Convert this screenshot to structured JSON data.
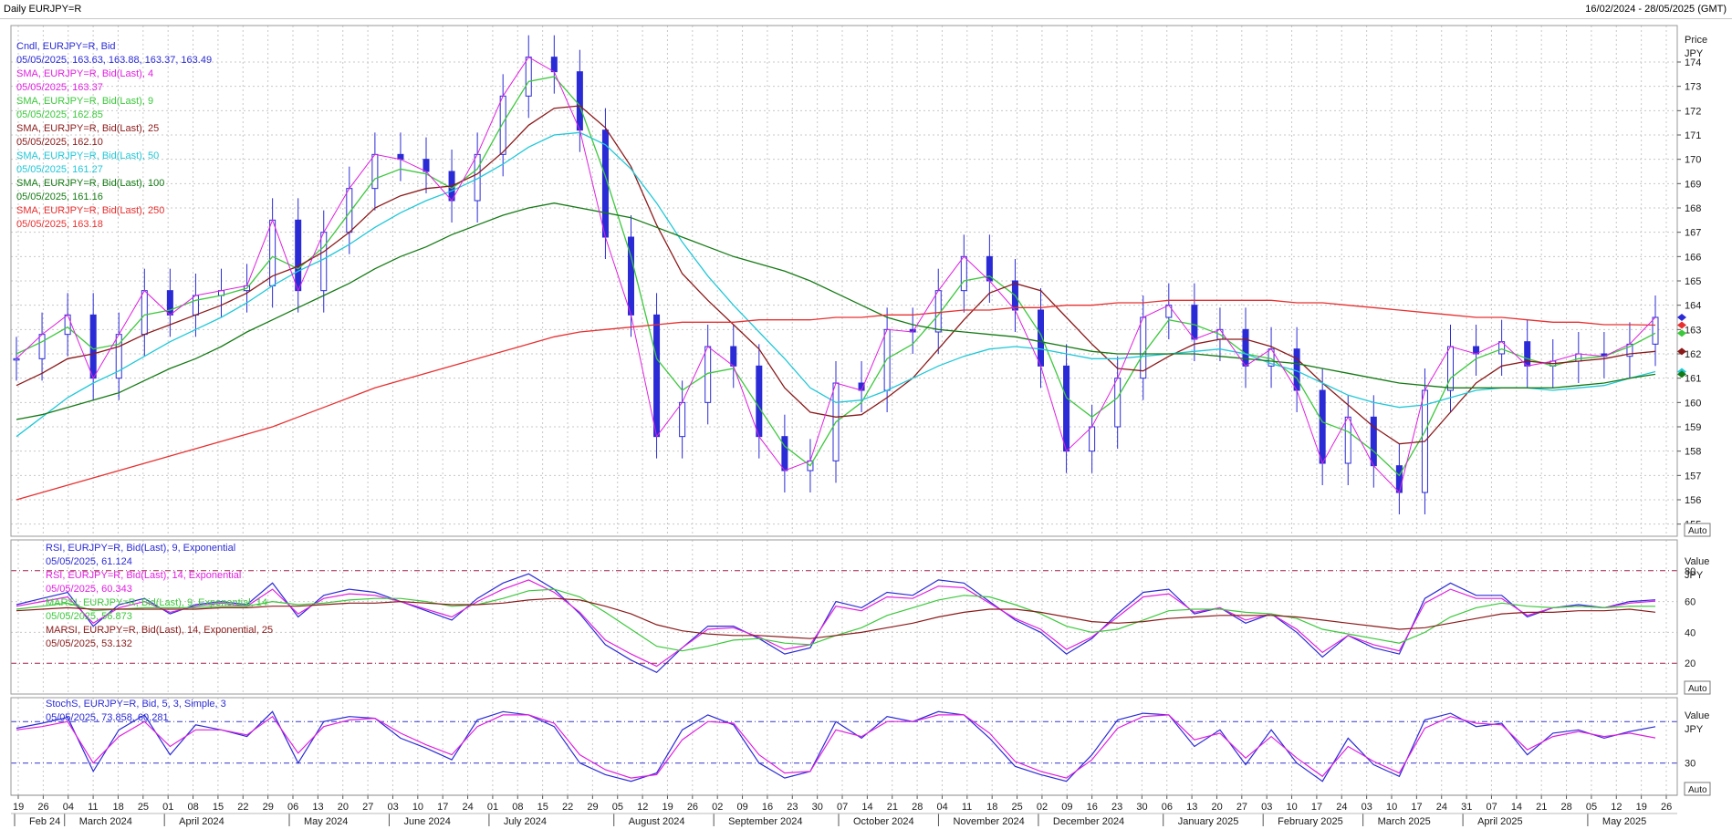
{
  "header": {
    "title": "Daily EURJPY=R",
    "date_range": "16/02/2024 - 28/05/2025 (GMT)"
  },
  "axes": {
    "price": {
      "label": "Price",
      "unit": "JPY",
      "ticks": [
        155,
        156,
        157,
        158,
        159,
        160,
        161,
        162,
        163,
        164,
        165,
        166,
        167,
        168,
        169,
        170,
        171,
        172,
        173,
        174
      ]
    },
    "rsi": {
      "label": "Value",
      "unit": "JPY",
      "ticks": [
        20,
        40,
        60,
        80
      ]
    },
    "stoch": {
      "label": "Value",
      "unit": "JPY",
      "ticks": [
        30
      ]
    },
    "auto_label": "Auto",
    "day_labels": [
      "19",
      "26",
      "04",
      "11",
      "18",
      "25",
      "01",
      "08",
      "15",
      "22",
      "29",
      "06",
      "13",
      "20",
      "27",
      "03",
      "10",
      "17",
      "24",
      "01",
      "08",
      "15",
      "22",
      "29",
      "05",
      "12",
      "19",
      "26",
      "02",
      "09",
      "16",
      "23",
      "30",
      "07",
      "14",
      "21",
      "28",
      "04",
      "11",
      "18",
      "25",
      "02",
      "09",
      "16",
      "23",
      "30",
      "06",
      "13",
      "20",
      "27",
      "03",
      "10",
      "17",
      "24",
      "03",
      "10",
      "17",
      "24",
      "31",
      "07",
      "14",
      "21",
      "28",
      "05",
      "12",
      "19",
      "26"
    ],
    "month_labels": [
      "Feb 24",
      "March 2024",
      "April 2024",
      "May 2024",
      "June 2024",
      "July 2024",
      "August 2024",
      "September 2024",
      "October 2024",
      "November 2024",
      "December 2024",
      "January 2025",
      "February 2025",
      "March 2025",
      "April 2025",
      "May 2025"
    ]
  },
  "legend": {
    "price": [
      {
        "label": "Cndl, EURJPY=R, Bid",
        "value": "05/05/2025, 163.63, 163.88, 163.37, 163.49",
        "color": "#2b2bd6"
      },
      {
        "label": "SMA, EURJPY=R, Bid(Last),  4",
        "value": "05/05/2025, 163.37",
        "color": "#e020e0"
      },
      {
        "label": "SMA, EURJPY=R, Bid(Last),  9",
        "value": "05/05/2025, 162.85",
        "color": "#3cc83c"
      },
      {
        "label": "SMA, EURJPY=R, Bid(Last),  25",
        "value": "05/05/2025, 162.10",
        "color": "#8b1a1a"
      },
      {
        "label": "SMA, EURJPY=R, Bid(Last),  50",
        "value": "05/05/2025, 161.27",
        "color": "#20c8d8"
      },
      {
        "label": "SMA, EURJPY=R, Bid(Last),  100",
        "value": "05/05/2025, 161.16",
        "color": "#157a15"
      },
      {
        "label": "SMA, EURJPY=R, Bid(Last),  250",
        "value": "05/05/2025, 163.18",
        "color": "#e83030"
      }
    ],
    "rsi": [
      {
        "label": "RSI, EURJPY=R, Bid(Last),  9, Exponential",
        "value": "05/05/2025, 61.124",
        "color": "#2b2bd6"
      },
      {
        "label": "RSI, EURJPY=R, Bid(Last),  14, Exponential",
        "value": "05/05/2025, 60.343",
        "color": "#e020e0"
      },
      {
        "label": "MARSI, EURJPY=R, Bid(Last),  9, Exponential, 14",
        "value": "05/05/2025, 56.873",
        "color": "#3cc83c"
      },
      {
        "label": "MARSI, EURJPY=R, Bid(Last),  14, Exponential, 25",
        "value": "05/05/2025, 53.132",
        "color": "#8b1a1a"
      }
    ],
    "stoch": [
      {
        "label": "StochS, EURJPY=R, Bid,  5, 3, Simple, 3",
        "value": "05/05/2025, 73.858, 60.281",
        "color": "#2b2bd6"
      }
    ]
  },
  "chart_data": {
    "type": "line",
    "symbol": "EURJPY=R",
    "x": [
      "2024-02-16",
      "2024-02-23",
      "2024-03-01",
      "2024-03-08",
      "2024-03-15",
      "2024-03-22",
      "2024-03-29",
      "2024-04-05",
      "2024-04-12",
      "2024-04-19",
      "2024-04-26",
      "2024-05-03",
      "2024-05-10",
      "2024-05-17",
      "2024-05-24",
      "2024-05-31",
      "2024-06-07",
      "2024-06-14",
      "2024-06-21",
      "2024-06-28",
      "2024-07-05",
      "2024-07-12",
      "2024-07-19",
      "2024-07-26",
      "2024-08-02",
      "2024-08-09",
      "2024-08-16",
      "2024-08-23",
      "2024-08-30",
      "2024-09-06",
      "2024-09-13",
      "2024-09-20",
      "2024-09-27",
      "2024-10-04",
      "2024-10-11",
      "2024-10-18",
      "2024-10-25",
      "2024-11-01",
      "2024-11-08",
      "2024-11-15",
      "2024-11-22",
      "2024-11-29",
      "2024-12-06",
      "2024-12-13",
      "2024-12-20",
      "2024-12-27",
      "2025-01-03",
      "2025-01-10",
      "2025-01-17",
      "2025-01-24",
      "2025-01-31",
      "2025-02-07",
      "2025-02-14",
      "2025-02-21",
      "2025-02-28",
      "2025-03-07",
      "2025-03-14",
      "2025-03-21",
      "2025-03-28",
      "2025-04-04",
      "2025-04-11",
      "2025-04-18",
      "2025-04-25",
      "2025-05-02",
      "2025-05-05"
    ],
    "price_ylim": [
      154.5,
      175.5
    ],
    "series": [
      {
        "name": "Cndl, EURJPY=R, Bid",
        "values": [
          161.8,
          162.8,
          163.6,
          161.0,
          162.8,
          164.6,
          163.6,
          164.4,
          164.6,
          164.8,
          167.5,
          164.6,
          167.0,
          168.8,
          170.2,
          170.0,
          169.5,
          168.3,
          170.2,
          172.6,
          174.2,
          173.6,
          171.2,
          166.8,
          163.6,
          158.6,
          160.0,
          162.3,
          161.5,
          158.6,
          157.2,
          157.6,
          160.8,
          160.5,
          163.0,
          162.9,
          164.6,
          166.0,
          165.0,
          163.8,
          161.5,
          158.0,
          159.0,
          161.0,
          163.5,
          164.0,
          162.6,
          163.0,
          161.5,
          162.2,
          160.5,
          157.5,
          159.4,
          157.4,
          156.3,
          160.5,
          162.3,
          162.0,
          162.5,
          161.5,
          161.7,
          162.0,
          161.9,
          162.4,
          163.5
        ]
      },
      {
        "name": "SMA, EURJPY=R, Bid(Last),  9",
        "values": [
          162.0,
          162.5,
          163.1,
          162.2,
          162.4,
          163.6,
          163.8,
          164.2,
          164.4,
          164.7,
          166.0,
          165.5,
          166.4,
          167.8,
          169.2,
          169.6,
          169.4,
          168.8,
          169.6,
          171.5,
          173.2,
          173.4,
          172.2,
          169.3,
          166.0,
          161.8,
          160.5,
          161.2,
          161.4,
          159.8,
          158.2,
          157.4,
          159.2,
          160.0,
          161.8,
          162.4,
          163.6,
          165.0,
          165.2,
          164.4,
          162.8,
          160.2,
          159.4,
          160.2,
          162.0,
          163.4,
          163.2,
          162.8,
          162.0,
          161.8,
          161.0,
          159.2,
          158.8,
          158.0,
          157.0,
          158.8,
          161.0,
          161.8,
          162.2,
          161.8,
          161.5,
          161.8,
          161.9,
          162.3,
          162.85
        ]
      },
      {
        "name": "SMA, EURJPY=R, Bid(Last),  25",
        "values": [
          160.7,
          161.2,
          161.8,
          162.0,
          162.3,
          162.8,
          163.2,
          163.6,
          164.0,
          164.5,
          165.2,
          165.6,
          166.2,
          167.0,
          168.0,
          168.5,
          168.8,
          168.9,
          169.4,
          170.3,
          171.4,
          172.1,
          172.2,
          171.3,
          169.7,
          167.3,
          165.3,
          164.2,
          163.2,
          162.2,
          160.6,
          159.6,
          159.4,
          159.5,
          160.2,
          161.0,
          162.2,
          163.4,
          164.5,
          164.9,
          164.6,
          163.5,
          162.4,
          161.4,
          161.3,
          161.9,
          162.4,
          162.6,
          162.6,
          162.3,
          161.8,
          160.8,
          159.9,
          159.0,
          158.3,
          158.4,
          159.6,
          160.8,
          161.5,
          161.7,
          161.6,
          161.7,
          161.8,
          162.0,
          162.1
        ]
      },
      {
        "name": "SMA, EURJPY=R, Bid(Last),  50",
        "values": [
          158.6,
          159.4,
          160.2,
          160.8,
          161.3,
          161.9,
          162.5,
          163.0,
          163.5,
          164.1,
          164.8,
          165.4,
          165.9,
          166.5,
          167.2,
          167.8,
          168.3,
          168.7,
          169.2,
          169.8,
          170.5,
          171.0,
          171.1,
          170.6,
          169.6,
          168.2,
          166.6,
          165.2,
          164.0,
          162.9,
          161.8,
          160.6,
          160.0,
          160.1,
          160.5,
          161.0,
          161.5,
          161.9,
          162.2,
          162.3,
          162.2,
          162.0,
          161.8,
          161.8,
          161.9,
          162.0,
          162.1,
          162.2,
          162.0,
          161.6,
          161.3,
          160.8,
          160.3,
          160.0,
          159.8,
          159.9,
          160.2,
          160.5,
          160.6,
          160.6,
          160.5,
          160.6,
          160.7,
          161.0,
          161.27
        ]
      },
      {
        "name": "SMA, EURJPY=R, Bid(Last),  100",
        "values": [
          159.3,
          159.5,
          159.8,
          160.1,
          160.4,
          160.9,
          161.4,
          161.8,
          162.3,
          162.9,
          163.4,
          163.9,
          164.4,
          164.9,
          165.5,
          166.0,
          166.4,
          166.9,
          167.3,
          167.7,
          168.0,
          168.2,
          168.0,
          167.8,
          167.6,
          167.2,
          166.8,
          166.4,
          166.0,
          165.7,
          165.4,
          165.0,
          164.5,
          164.0,
          163.5,
          163.2,
          163.0,
          162.9,
          162.8,
          162.7,
          162.5,
          162.3,
          162.1,
          162.0,
          162.0,
          162.0,
          162.0,
          161.9,
          161.8,
          161.7,
          161.6,
          161.4,
          161.2,
          161.0,
          160.8,
          160.7,
          160.6,
          160.6,
          160.6,
          160.6,
          160.6,
          160.7,
          160.8,
          161.0,
          161.16
        ]
      },
      {
        "name": "SMA, EURJPY=R, Bid(Last),  250",
        "values": [
          156.0,
          156.3,
          156.6,
          156.9,
          157.2,
          157.5,
          157.8,
          158.1,
          158.4,
          158.7,
          159.0,
          159.4,
          159.8,
          160.2,
          160.6,
          160.9,
          161.2,
          161.5,
          161.8,
          162.1,
          162.4,
          162.7,
          162.9,
          163.0,
          163.1,
          163.2,
          163.3,
          163.3,
          163.3,
          163.4,
          163.4,
          163.4,
          163.5,
          163.5,
          163.6,
          163.6,
          163.7,
          163.8,
          163.8,
          163.9,
          163.9,
          164.0,
          164.0,
          164.1,
          164.1,
          164.2,
          164.2,
          164.2,
          164.2,
          164.2,
          164.1,
          164.1,
          164.0,
          163.9,
          163.8,
          163.7,
          163.6,
          163.5,
          163.5,
          163.4,
          163.3,
          163.3,
          163.2,
          163.2,
          163.18
        ]
      }
    ],
    "rsi_series": [
      {
        "name": "RSI, EURJPY=R, Bid(Last),  9, Exponential",
        "values": [
          58,
          62,
          66,
          44,
          58,
          62,
          52,
          58,
          60,
          58,
          72,
          50,
          64,
          68,
          66,
          60,
          54,
          48,
          62,
          72,
          78,
          68,
          52,
          32,
          22,
          14,
          30,
          44,
          44,
          36,
          26,
          30,
          60,
          56,
          66,
          64,
          74,
          72,
          60,
          48,
          40,
          26,
          36,
          52,
          66,
          68,
          52,
          56,
          46,
          52,
          40,
          24,
          38,
          30,
          26,
          62,
          72,
          64,
          64,
          50,
          56,
          58,
          56,
          60,
          61.1
        ]
      },
      {
        "name": "RSI, EURJPY=R, Bid(Last),  14, Exponential",
        "values": [
          57,
          60,
          63,
          46,
          56,
          60,
          53,
          57,
          59,
          57,
          68,
          52,
          62,
          65,
          64,
          60,
          55,
          50,
          60,
          68,
          74,
          66,
          53,
          35,
          26,
          18,
          30,
          42,
          43,
          37,
          29,
          32,
          57,
          54,
          63,
          62,
          70,
          69,
          59,
          49,
          42,
          29,
          37,
          50,
          63,
          65,
          53,
          56,
          48,
          52,
          42,
          27,
          38,
          32,
          28,
          59,
          68,
          62,
          62,
          51,
          56,
          57,
          56,
          59,
          60.3
        ]
      },
      {
        "name": "MARSI, EURJPY=R, Bid(Last),  9, Exponential, 14",
        "values": [
          55,
          57,
          59,
          54,
          55,
          56,
          56,
          56,
          57,
          57,
          60,
          58,
          59,
          61,
          62,
          62,
          60,
          57,
          58,
          62,
          67,
          68,
          63,
          53,
          42,
          31,
          28,
          31,
          35,
          36,
          33,
          32,
          38,
          43,
          51,
          56,
          61,
          64,
          63,
          58,
          52,
          44,
          40,
          42,
          48,
          54,
          55,
          55,
          53,
          52,
          49,
          42,
          39,
          36,
          33,
          40,
          50,
          56,
          59,
          57,
          56,
          57,
          56,
          57,
          56.9
        ]
      },
      {
        "name": "MARSI, EURJPY=R, Bid(Last),  14, Exponential, 25",
        "values": [
          54,
          55,
          56,
          55,
          55,
          55,
          55,
          55,
          56,
          56,
          57,
          57,
          58,
          59,
          59,
          60,
          59,
          58,
          58,
          59,
          61,
          62,
          61,
          57,
          52,
          45,
          41,
          39,
          38,
          38,
          37,
          36,
          38,
          40,
          43,
          46,
          50,
          53,
          55,
          55,
          53,
          50,
          47,
          46,
          47,
          49,
          50,
          51,
          51,
          51,
          50,
          48,
          46,
          44,
          42,
          43,
          46,
          49,
          52,
          53,
          53,
          54,
          54,
          55,
          53.1
        ]
      }
    ],
    "stoch_series": [
      {
        "name": "StochS %K",
        "values": [
          72,
          78,
          85,
          20,
          70,
          88,
          40,
          76,
          70,
          62,
          92,
          30,
          80,
          86,
          84,
          60,
          48,
          34,
          82,
          92,
          88,
          74,
          30,
          16,
          8,
          18,
          70,
          88,
          76,
          30,
          12,
          20,
          80,
          60,
          86,
          80,
          92,
          88,
          60,
          26,
          16,
          8,
          40,
          82,
          90,
          88,
          50,
          70,
          28,
          70,
          30,
          8,
          60,
          28,
          14,
          82,
          90,
          74,
          78,
          40,
          66,
          70,
          60,
          68,
          73.9
        ]
      },
      {
        "name": "StochS %D",
        "values": [
          70,
          74,
          80,
          30,
          62,
          80,
          50,
          70,
          70,
          64,
          86,
          42,
          74,
          82,
          84,
          66,
          52,
          40,
          74,
          88,
          88,
          78,
          40,
          22,
          12,
          16,
          58,
          80,
          78,
          40,
          18,
          20,
          70,
          62,
          80,
          80,
          88,
          88,
          66,
          32,
          20,
          12,
          34,
          72,
          86,
          88,
          58,
          66,
          36,
          62,
          36,
          14,
          50,
          32,
          18,
          72,
          86,
          78,
          76,
          46,
          62,
          68,
          62,
          66,
          60.3
        ]
      }
    ]
  },
  "colors": {
    "candle": "#2b2bd6",
    "sma4": "#e020e0",
    "sma9": "#3cc83c",
    "sma25": "#8b1a1a",
    "sma50": "#20c8d8",
    "sma100": "#157a15",
    "sma250": "#e83030",
    "grid": "#c8c8c8",
    "band": "#a0204a",
    "stoch_band": "#3333cc"
  }
}
